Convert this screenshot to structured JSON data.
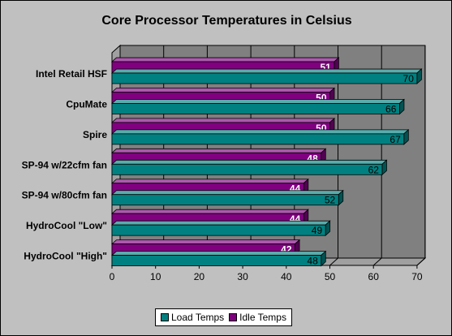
{
  "chart_data": {
    "type": "bar",
    "orientation": "horizontal",
    "three_d": true,
    "title": "Core Processor Temperatures in Celsius",
    "categories": [
      "Intel Retail HSF",
      "CpuMate",
      "Spire",
      "SP-94 w/22cfm fan",
      "SP-94 w/80cfm fan",
      "HydroCool \"Low\"",
      "HydroCool \"High\""
    ],
    "series": [
      {
        "name": "Load Temps",
        "values": [
          70,
          66,
          67,
          62,
          52,
          49,
          48
        ],
        "color": "#008080"
      },
      {
        "name": "Idle Temps",
        "values": [
          51,
          50,
          50,
          48,
          44,
          44,
          42
        ],
        "color": "#800080"
      }
    ],
    "xlim": [
      0,
      70
    ],
    "xticks": [
      0,
      10,
      20,
      30,
      40,
      50,
      60,
      70
    ],
    "grid": true,
    "legend_position": "bottom",
    "background_color": "#c0c0c0",
    "plot_wall_color": "#808080"
  }
}
